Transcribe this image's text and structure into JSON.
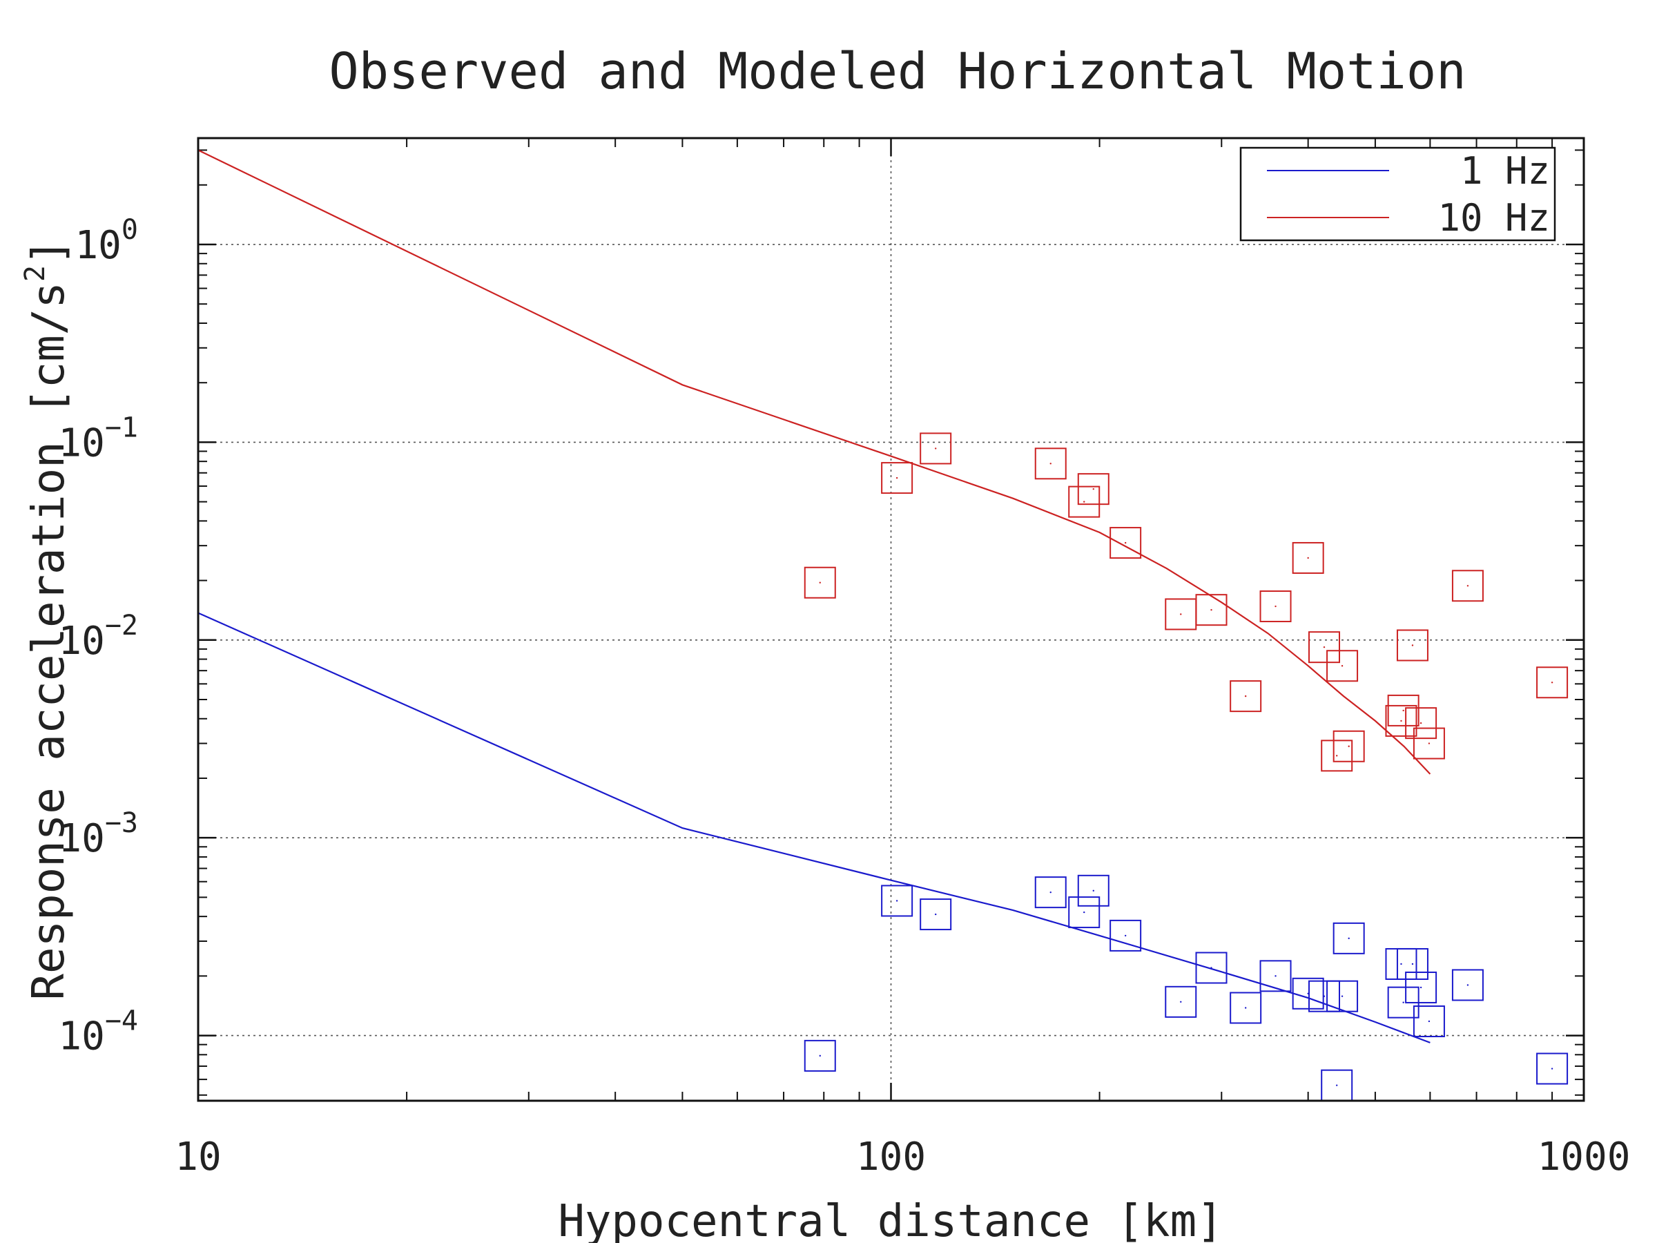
{
  "chart_data": {
    "type": "scatter",
    "title": "Observed and Modeled Horizontal Motion",
    "xlabel": "Hypocentral distance [km]",
    "ylabel": "Response acceleration [cm/s",
    "ylabel_superscript": "2",
    "ylabel_suffix": "]",
    "xscale": "log",
    "yscale": "log",
    "xlim": [
      10,
      1000
    ],
    "ylim": [
      4.68e-05,
      3.45
    ],
    "grid": true,
    "legend_position": "top-right",
    "x_ticks": [
      {
        "value": 10,
        "label": "10"
      },
      {
        "value": 100,
        "label": "100"
      },
      {
        "value": 1000,
        "label": "1000"
      }
    ],
    "y_ticks": [
      {
        "value": 1,
        "base": "10",
        "exp": "0"
      },
      {
        "value": 0.1,
        "base": "10",
        "exp": "−1"
      },
      {
        "value": 0.01,
        "base": "10",
        "exp": "−2"
      },
      {
        "value": 0.001,
        "base": "10",
        "exp": "−3"
      },
      {
        "value": 0.0001,
        "base": "10",
        "exp": "−4"
      }
    ],
    "series": [
      {
        "name": "1 Hz",
        "color": "#1a1acc",
        "model": {
          "x": [
            10,
            50,
            100,
            150,
            200,
            300,
            400,
            500,
            600
          ],
          "y": [
            0.0137,
            0.00112,
            0.00061,
            0.00043,
            0.00032,
            0.00021,
            0.000155,
            0.000117,
            9.2e-05
          ]
        },
        "observed": {
          "x": [
            79,
            102,
            116,
            170,
            190,
            196,
            218,
            262,
            290,
            325,
            359,
            400,
            422,
            440,
            448,
            458,
            545,
            549,
            566,
            582,
            598,
            680,
            900
          ],
          "y": [
            7.9e-05,
            0.00048,
            0.00041,
            0.00053,
            0.00042,
            0.00054,
            0.00032,
            0.000148,
            0.00022,
            0.000138,
            0.0002,
            0.000163,
            0.000158,
            5.6e-05,
            0.000158,
            0.00031,
            0.00023,
            0.000147,
            0.00023,
            0.000175,
            0.000118,
            0.00018,
            6.8e-05
          ]
        }
      },
      {
        "name": "10 Hz",
        "color": "#cc2222",
        "model": {
          "x": [
            10,
            50,
            100,
            150,
            200,
            250,
            300,
            350,
            400,
            450,
            500,
            550,
            600
          ],
          "y": [
            3.0,
            0.195,
            0.085,
            0.052,
            0.035,
            0.023,
            0.0155,
            0.0108,
            0.0074,
            0.0052,
            0.0039,
            0.0029,
            0.0021
          ]
        },
        "observed": {
          "x": [
            79,
            102,
            116,
            170,
            190,
            196,
            218,
            262,
            290,
            325,
            359,
            400,
            422,
            440,
            448,
            458,
            545,
            549,
            566,
            582,
            598,
            680,
            900
          ],
          "y": [
            0.0195,
            0.066,
            0.093,
            0.078,
            0.05,
            0.058,
            0.031,
            0.0135,
            0.0142,
            0.0052,
            0.0148,
            0.026,
            0.0092,
            0.0026,
            0.0074,
            0.0029,
            0.0039,
            0.0044,
            0.0094,
            0.0038,
            0.003,
            0.0188,
            0.0061
          ]
        }
      }
    ]
  }
}
